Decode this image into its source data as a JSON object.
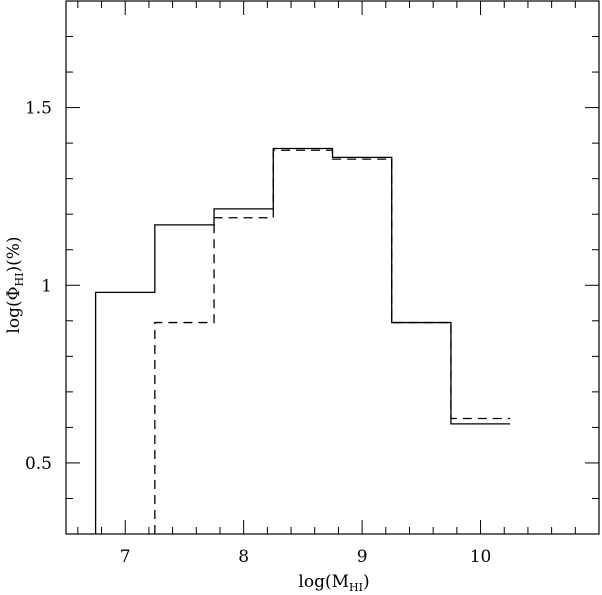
{
  "chart_data": {
    "type": "line",
    "title": "",
    "xlabel": {
      "main": "log(M",
      "sub": "HI",
      "tail": ")"
    },
    "ylabel": {
      "main": "log(Φ",
      "sub": "HI",
      "tail": ")(%)"
    },
    "xlim": [
      6.5,
      11.0
    ],
    "ylim": [
      0.3,
      1.8
    ],
    "x_ticks_major": [
      7,
      8,
      9,
      10
    ],
    "y_ticks_major": [
      0.5,
      1,
      1.5
    ],
    "x_tick_labels": [
      "7",
      "8",
      "9",
      "10"
    ],
    "y_tick_labels": [
      "0.5",
      "1",
      "1.5"
    ],
    "x_minor_step": 0.2,
    "y_minor_step": 0.1,
    "grid": false,
    "series": [
      {
        "style": "solid",
        "bin_edges": [
          6.75,
          7.25,
          7.75,
          8.25,
          8.75,
          9.25,
          9.75,
          10.25
        ],
        "values": [
          0.98,
          1.17,
          1.215,
          1.385,
          1.36,
          0.895,
          0.61
        ]
      },
      {
        "style": "dashed",
        "bin_edges": [
          7.25,
          7.75,
          8.25,
          8.75,
          9.25,
          9.75,
          10.25
        ],
        "values": [
          0.895,
          1.19,
          1.38,
          1.355,
          0.895,
          0.625
        ]
      }
    ]
  }
}
